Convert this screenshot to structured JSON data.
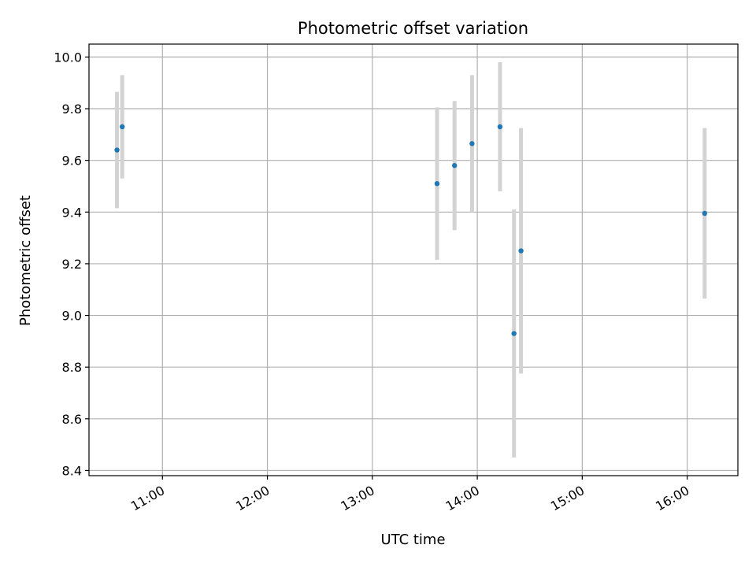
{
  "chart_data": {
    "type": "scatter",
    "title": "Photometric offset variation",
    "xlabel": "UTC time",
    "ylabel": "Photometric offset",
    "x_format": "HH:MM",
    "xlim": [
      "10:18",
      "16:29"
    ],
    "ylim": [
      8.38,
      10.05
    ],
    "x_ticks": [
      "11:00",
      "12:00",
      "13:00",
      "14:00",
      "15:00",
      "16:00"
    ],
    "y_ticks": [
      8.4,
      8.6,
      8.8,
      9.0,
      9.2,
      9.4,
      9.6,
      9.8,
      10.0
    ],
    "grid": true,
    "colors": {
      "points": "#1f77b4",
      "errorbars": "#d3d3d3",
      "grid": "#b0b0b0",
      "axes": "#000000"
    },
    "series": [
      {
        "points": [
          {
            "x": "10:34",
            "y": 9.64,
            "err": 0.225
          },
          {
            "x": "10:37",
            "y": 9.73,
            "err": 0.2
          },
          {
            "x": "13:37",
            "y": 9.51,
            "err": 0.295
          },
          {
            "x": "13:47",
            "y": 9.58,
            "err": 0.25
          },
          {
            "x": "13:57",
            "y": 9.665,
            "err": 0.265
          },
          {
            "x": "14:13",
            "y": 9.73,
            "err": 0.25
          },
          {
            "x": "14:21",
            "y": 8.93,
            "err": 0.48
          },
          {
            "x": "14:25",
            "y": 9.25,
            "err": 0.475
          },
          {
            "x": "16:10",
            "y": 9.395,
            "err": 0.33
          }
        ]
      }
    ]
  }
}
